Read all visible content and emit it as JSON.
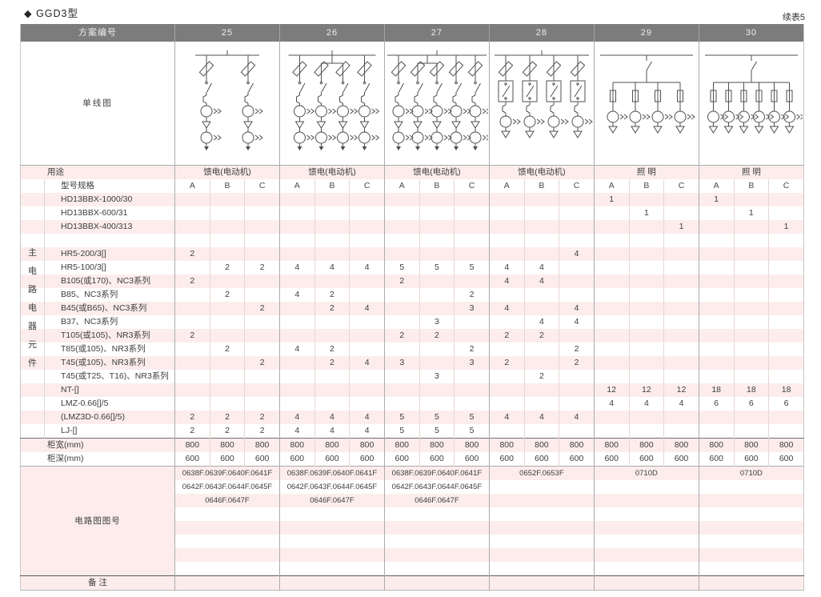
{
  "page": {
    "title": "◆ GGD3型",
    "continuation": "续表5"
  },
  "colors": {
    "header_bg": "#7c7c7c",
    "header_text": "#ededed",
    "stripe_pink": "#fcedec",
    "diagram_line": "#4f4f4f",
    "text": "#3d3d3d"
  },
  "table": {
    "corner_label": "方案编号",
    "schemes": [
      "25",
      "26",
      "27",
      "28",
      "29",
      "30"
    ],
    "diagram_label": "单线图",
    "usage_label": "用途",
    "usage_values": [
      "馈电(电动机)",
      "馈电(电动机)",
      "馈电(电动机)",
      "馈电(电动机)",
      "照 明",
      "照 明"
    ],
    "side_label": "主电路电器元件",
    "spec_label": "型号规格",
    "abc": [
      "A",
      "B",
      "C"
    ],
    "diagrams": [
      {
        "scheme": "25",
        "type": "feeder",
        "branches": 2,
        "bridge": []
      },
      {
        "scheme": "26",
        "type": "feeder",
        "branches": 4,
        "bridge": [
          1,
          2
        ]
      },
      {
        "scheme": "27",
        "type": "feeder",
        "branches": 5,
        "bridge": [
          1,
          2
        ]
      },
      {
        "scheme": "28",
        "type": "feeder_contactor",
        "branches": 4,
        "bridge": []
      },
      {
        "scheme": "29",
        "type": "lighting",
        "branches": 4,
        "bridge": []
      },
      {
        "scheme": "30",
        "type": "lighting",
        "branches": 6,
        "bridge": []
      }
    ],
    "rows": [
      {
        "label": "HD13BBX-1000/30",
        "values": [
          [
            "",
            "",
            ""
          ],
          [
            "",
            "",
            ""
          ],
          [
            "",
            "",
            ""
          ],
          [
            "",
            "",
            ""
          ],
          [
            "1",
            "",
            ""
          ],
          [
            "1",
            "",
            ""
          ]
        ]
      },
      {
        "label": "HD13BBX-600/31",
        "values": [
          [
            "",
            "",
            ""
          ],
          [
            "",
            "",
            ""
          ],
          [
            "",
            "",
            ""
          ],
          [
            "",
            "",
            ""
          ],
          [
            "",
            "1",
            ""
          ],
          [
            "",
            "1",
            ""
          ]
        ]
      },
      {
        "label": "HD13BBX-400/313",
        "values": [
          [
            "",
            "",
            ""
          ],
          [
            "",
            "",
            ""
          ],
          [
            "",
            "",
            ""
          ],
          [
            "",
            "",
            ""
          ],
          [
            "",
            "",
            "1"
          ],
          [
            "",
            "",
            "1"
          ]
        ]
      },
      {
        "label": "",
        "values": [
          [
            "",
            "",
            ""
          ],
          [
            "",
            "",
            ""
          ],
          [
            "",
            "",
            ""
          ],
          [
            "",
            "",
            ""
          ],
          [
            "",
            "",
            ""
          ],
          [
            "",
            "",
            ""
          ]
        ]
      },
      {
        "label": "HR5-200/3[]",
        "values": [
          [
            "2",
            "",
            ""
          ],
          [
            "",
            "",
            ""
          ],
          [
            "",
            "",
            ""
          ],
          [
            "",
            "",
            "4"
          ],
          [
            "",
            "",
            ""
          ],
          [
            "",
            "",
            ""
          ]
        ]
      },
      {
        "label": "HR5-100/3[]",
        "values": [
          [
            "",
            "2",
            "2"
          ],
          [
            "4",
            "4",
            "4"
          ],
          [
            "5",
            "5",
            "5"
          ],
          [
            "4",
            "4",
            ""
          ],
          [
            "",
            "",
            ""
          ],
          [
            "",
            "",
            ""
          ]
        ]
      },
      {
        "label": "B105(或170)、NC3系列",
        "values": [
          [
            "2",
            "",
            ""
          ],
          [
            "",
            "",
            ""
          ],
          [
            "2",
            "",
            ""
          ],
          [
            "4",
            "4",
            ""
          ],
          [
            "",
            "",
            ""
          ],
          [
            "",
            "",
            ""
          ]
        ]
      },
      {
        "label": "B85、NC3系列",
        "values": [
          [
            "",
            "2",
            ""
          ],
          [
            "4",
            "2",
            ""
          ],
          [
            "",
            "",
            "2"
          ],
          [
            "",
            "",
            ""
          ],
          [
            "",
            "",
            ""
          ],
          [
            "",
            "",
            ""
          ]
        ]
      },
      {
        "label": "B45(或B65)、NC3系列",
        "values": [
          [
            "",
            "",
            "2"
          ],
          [
            "",
            "2",
            "4"
          ],
          [
            "",
            "",
            "3"
          ],
          [
            "4",
            "",
            "4"
          ],
          [
            "",
            "",
            ""
          ],
          [
            "",
            "",
            ""
          ]
        ]
      },
      {
        "label": "B37、NC3系列",
        "values": [
          [
            "",
            "",
            ""
          ],
          [
            "",
            "",
            ""
          ],
          [
            "",
            "3",
            ""
          ],
          [
            "",
            "4",
            "4"
          ],
          [
            "",
            "",
            ""
          ],
          [
            "",
            "",
            ""
          ]
        ]
      },
      {
        "label": "T105(或105)、NR3系列",
        "values": [
          [
            "2",
            "",
            ""
          ],
          [
            "",
            "",
            ""
          ],
          [
            "2",
            "2",
            ""
          ],
          [
            "2",
            "2",
            ""
          ],
          [
            "",
            "",
            ""
          ],
          [
            "",
            "",
            ""
          ]
        ]
      },
      {
        "label": "T85(或105)、NR3系列",
        "values": [
          [
            "",
            "2",
            ""
          ],
          [
            "4",
            "2",
            ""
          ],
          [
            "",
            "",
            "2"
          ],
          [
            "",
            "",
            "2"
          ],
          [
            "",
            "",
            ""
          ],
          [
            "",
            "",
            ""
          ]
        ]
      },
      {
        "label": "T45(或105)、NR3系列",
        "values": [
          [
            "",
            "",
            "2"
          ],
          [
            "",
            "2",
            "4"
          ],
          [
            "3",
            "",
            "3"
          ],
          [
            "2",
            "",
            "2"
          ],
          [
            "",
            "",
            ""
          ],
          [
            "",
            "",
            ""
          ]
        ]
      },
      {
        "label": "T45(或T25、T16)、NR3系列",
        "values": [
          [
            "",
            "",
            ""
          ],
          [
            "",
            "",
            ""
          ],
          [
            "",
            "3",
            ""
          ],
          [
            "",
            "2",
            ""
          ],
          [
            "",
            "",
            ""
          ],
          [
            "",
            "",
            ""
          ]
        ]
      },
      {
        "label": "NT-[]",
        "values": [
          [
            "",
            "",
            ""
          ],
          [
            "",
            "",
            ""
          ],
          [
            "",
            "",
            ""
          ],
          [
            "",
            "",
            ""
          ],
          [
            "12",
            "12",
            "12"
          ],
          [
            "18",
            "18",
            "18"
          ]
        ]
      },
      {
        "label": "LMZ-0.66[]/5",
        "values": [
          [
            "",
            "",
            ""
          ],
          [
            "",
            "",
            ""
          ],
          [
            "",
            "",
            ""
          ],
          [
            "",
            "",
            ""
          ],
          [
            "4",
            "4",
            "4"
          ],
          [
            "6",
            "6",
            "6"
          ]
        ]
      },
      {
        "label": "(LMZ3D-0.66[]/5)",
        "values": [
          [
            "2",
            "2",
            "2"
          ],
          [
            "4",
            "4",
            "4"
          ],
          [
            "5",
            "5",
            "5"
          ],
          [
            "4",
            "4",
            "4"
          ],
          [
            "",
            "",
            ""
          ],
          [
            "",
            "",
            ""
          ]
        ]
      },
      {
        "label": "LJ-[]",
        "values": [
          [
            "2",
            "2",
            "2"
          ],
          [
            "4",
            "4",
            "4"
          ],
          [
            "5",
            "5",
            "5"
          ],
          [
            "",
            "",
            ""
          ],
          [
            "",
            "",
            ""
          ],
          [
            "",
            "",
            ""
          ]
        ]
      }
    ],
    "width_row": {
      "label": "柜宽(mm)",
      "values": [
        [
          "800",
          "800",
          "800"
        ],
        [
          "800",
          "800",
          "800"
        ],
        [
          "800",
          "800",
          "800"
        ],
        [
          "800",
          "800",
          "800"
        ],
        [
          "800",
          "800",
          "800"
        ],
        [
          "800",
          "800",
          "800"
        ]
      ]
    },
    "depth_row": {
      "label": "柜深(mm)",
      "values": [
        [
          "600",
          "600",
          "600"
        ],
        [
          "600",
          "600",
          "600"
        ],
        [
          "600",
          "600",
          "600"
        ],
        [
          "600",
          "600",
          "600"
        ],
        [
          "600",
          "600",
          "600"
        ],
        [
          "600",
          "600",
          "600"
        ]
      ]
    },
    "circuit_label": "电路图图号",
    "circuit_numbers": [
      [
        "0638F.0639F.0640F.0641F",
        "0642F.0643F.0644F.0645F",
        "0646F.0647F"
      ],
      [
        "0638F.0639F.0640F.0641F",
        "0642F.0643F.0644F.0645F",
        "0646F.0647F"
      ],
      [
        "0638F.0639F.0640F.0641F",
        "0642F.0643F.0644F.0645F",
        "0646F.0647F"
      ],
      [
        "0652F.0653F"
      ],
      [
        "0710D"
      ],
      [
        "0710D"
      ]
    ],
    "remark_label": "备 注"
  }
}
